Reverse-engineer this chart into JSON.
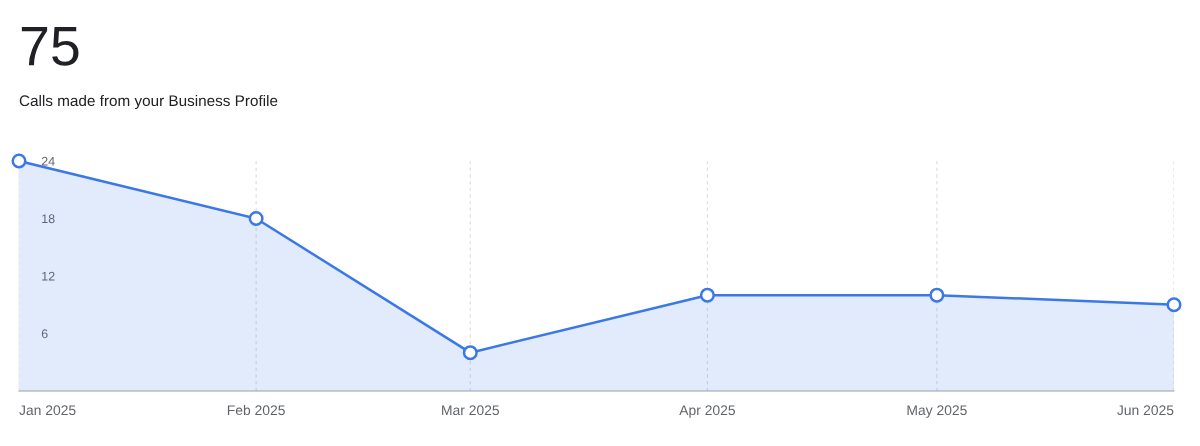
{
  "chart_data": {
    "type": "area",
    "title": "75",
    "subtitle": "Calls made from your Business Profile",
    "x": [
      "2025-01",
      "2025-02",
      "2025-03",
      "2025-04",
      "2025-05",
      "2025-06"
    ],
    "series": [
      {
        "color": "#3b78e7",
        "values": [
          24,
          18,
          4,
          10,
          10,
          9
        ]
      }
    ],
    "xlim": [
      "2025-01",
      "2025-06"
    ],
    "xticks": [
      {
        "value": "2025-01",
        "label": "Jan 2025"
      },
      {
        "value": "2025-02",
        "label": "Feb 2025"
      },
      {
        "value": "2025-03",
        "label": "Mar 2025"
      },
      {
        "value": "2025-04",
        "label": "Apr 2025"
      },
      {
        "value": "2025-05",
        "label": "May 2025"
      },
      {
        "value": "2025-06",
        "label": "Jun 2025"
      }
    ],
    "ylim": [
      0,
      24
    ],
    "yticks": [
      6,
      12,
      18,
      24
    ],
    "grid": "x",
    "marker": "circle",
    "line_style": "solid",
    "legend": false
  }
}
